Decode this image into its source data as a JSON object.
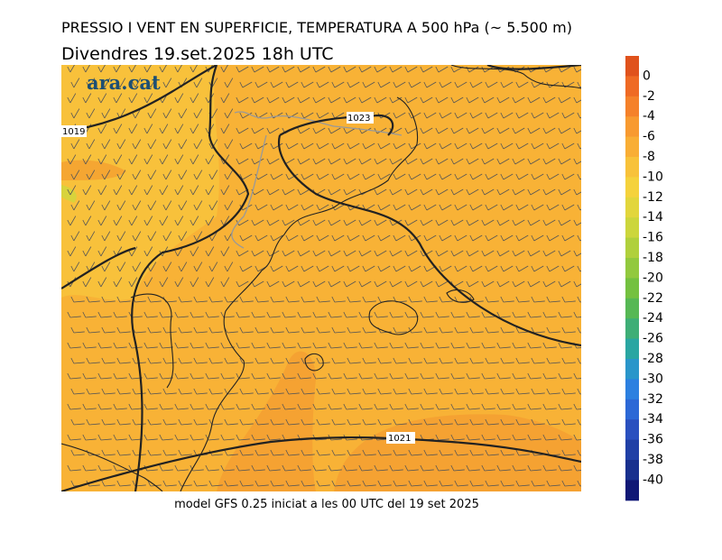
{
  "header": {
    "title": "PRESSIO I VENT EN SUPERFICIE, TEMPERATURA A 500 hPa (~ 5.500 m)",
    "subtitle": "Divendres  19.set.2025 18h UTC"
  },
  "map": {
    "logo": "ara.cat",
    "isobars": [
      "1019",
      "1023",
      "1021"
    ]
  },
  "colorbar": {
    "ticks": [
      0,
      -2,
      -4,
      -6,
      -8,
      -10,
      -12,
      -14,
      -16,
      -18,
      -20,
      -22,
      -24,
      -26,
      -28,
      -30,
      -32,
      -34,
      -36,
      -38,
      -40
    ]
  },
  "footer": "model GFS 0.25 iniciat a les 00 UTC del 19 set 2025"
}
